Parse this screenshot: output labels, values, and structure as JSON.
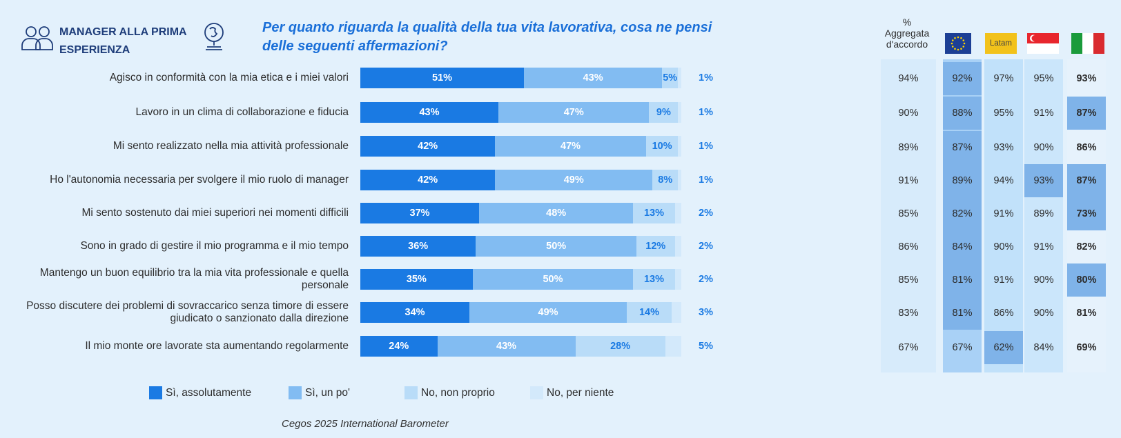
{
  "header": {
    "title": "MANAGER ALLA PRIMA ESPERIENZA",
    "question": "Per quanto riguarda la qualità della tua vita lavorativa, cosa ne pensi delle seguenti affermazioni?"
  },
  "chart_data": {
    "type": "bar",
    "orientation": "horizontal",
    "stacked": true,
    "categories": [
      "Agisco in conformità con la mia etica e i miei valori",
      "Lavoro in un clima di collaborazione e fiducia",
      "Mi sento realizzato nella mia attività professionale",
      "Ho l'autonomia necessaria per svolgere il mio ruolo di manager",
      "Mi sento sostenuto dai miei superiori nei momenti difficili",
      "Sono in grado di gestire il mio programma e il mio tempo",
      "Mantengo un buon equilibrio tra la mia vita professionale e quella personale",
      "Posso discutere dei problemi di sovraccarico senza timore di essere giudicato o sanzionato dalla direzione",
      "Il mio monte ore lavorate sta aumentando regolarmente"
    ],
    "series": [
      {
        "name": "Sì, assolutamente",
        "values": [
          51,
          43,
          42,
          42,
          37,
          36,
          35,
          34,
          24
        ],
        "color": "#1a7ae3"
      },
      {
        "name": "Sì, un po'",
        "values": [
          43,
          47,
          47,
          49,
          48,
          50,
          50,
          49,
          43
        ],
        "color": "#82bcf2"
      },
      {
        "name": "No, non proprio",
        "values": [
          5,
          9,
          10,
          8,
          13,
          12,
          13,
          14,
          28
        ],
        "color": "#b9dcf8"
      },
      {
        "name": "No, per niente",
        "values": [
          1,
          1,
          1,
          1,
          2,
          2,
          2,
          3,
          5
        ],
        "color": "#d3e9fb"
      }
    ],
    "labels": [
      [
        "51%",
        "43%",
        "5%",
        "1%"
      ],
      [
        "43%",
        "47%",
        "9%",
        "1%"
      ],
      [
        "42%",
        "47%",
        "10%",
        "1%"
      ],
      [
        "42%",
        "49%",
        "8%",
        "1%"
      ],
      [
        "37%",
        "48%",
        "13%",
        "2%"
      ],
      [
        "36%",
        "50%",
        "12%",
        "2%"
      ],
      [
        "35%",
        "50%",
        "13%",
        "2%"
      ],
      [
        "34%",
        "49%",
        "14%",
        "3%"
      ],
      [
        "24%",
        "43%",
        "28%",
        "5%"
      ]
    ],
    "legend": [
      "Sì, assolutamente",
      "Sì, un po'",
      "No, non proprio",
      "No, per niente"
    ],
    "legend_position": "bottom",
    "xlim": [
      0,
      100
    ]
  },
  "table": {
    "aggregate_header": "%\nAggregata\nd'accordo",
    "columns": [
      {
        "key": "aggregate",
        "label": "%\nAggregata\nd'accordo",
        "bg": "#d7ebfb"
      },
      {
        "key": "eu",
        "flag": "eu-flag-icon",
        "bg": "#a9d1f6"
      },
      {
        "key": "latam",
        "label": "Latam",
        "flag": "latam-flag-icon",
        "bg": "#c1e1fa"
      },
      {
        "key": "sg",
        "flag": "singapore-flag-icon",
        "bg": "#cbe6fb"
      },
      {
        "key": "it",
        "flag": "italy-flag-icon",
        "bg": "#e6f2fc"
      }
    ],
    "rows": [
      [
        "94%",
        "92%",
        "97%",
        "95%",
        "93%"
      ],
      [
        "90%",
        "88%",
        "95%",
        "91%",
        "87%"
      ],
      [
        "89%",
        "87%",
        "93%",
        "90%",
        "86%"
      ],
      [
        "91%",
        "89%",
        "94%",
        "93%",
        "87%"
      ],
      [
        "85%",
        "82%",
        "91%",
        "89%",
        "73%"
      ],
      [
        "86%",
        "84%",
        "90%",
        "91%",
        "82%"
      ],
      [
        "85%",
        "81%",
        "91%",
        "90%",
        "80%"
      ],
      [
        "83%",
        "81%",
        "86%",
        "90%",
        "81%"
      ],
      [
        "67%",
        "67%",
        "62%",
        "84%",
        "69%"
      ]
    ],
    "highlights": [
      [
        false,
        true,
        false,
        false,
        false
      ],
      [
        false,
        true,
        false,
        false,
        true
      ],
      [
        false,
        true,
        false,
        false,
        false
      ],
      [
        false,
        true,
        false,
        true,
        true
      ],
      [
        false,
        true,
        false,
        false,
        true
      ],
      [
        false,
        true,
        false,
        false,
        false
      ],
      [
        false,
        true,
        false,
        false,
        true
      ],
      [
        false,
        true,
        false,
        false,
        false
      ],
      [
        false,
        false,
        true,
        false,
        false
      ]
    ]
  },
  "source": "Cegos 2025 International Barometer",
  "colors": {
    "accent": "#1a7ae3",
    "title": "#1e3d7a",
    "background": "#e3f1fc"
  }
}
